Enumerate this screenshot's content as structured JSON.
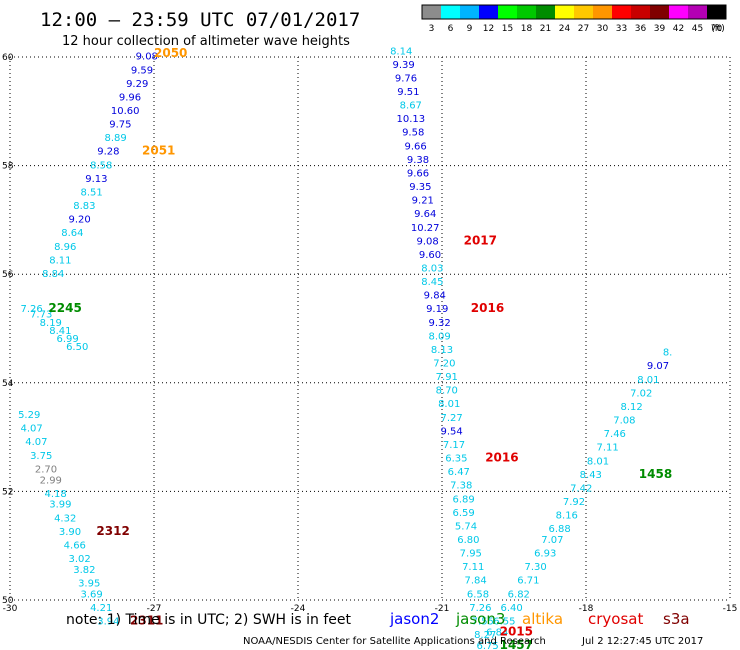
{
  "header": {
    "title": "12:00 – 23:59 UTC 07/01/2017",
    "subtitle": "12 hour collection of altimeter wave heights"
  },
  "legend": {
    "unit": "(ft)",
    "bins": [
      {
        "label": "3",
        "color": "#8c8c8c"
      },
      {
        "label": "6",
        "color": "#00ffff"
      },
      {
        "label": "9",
        "color": "#00b4ff"
      },
      {
        "label": "12",
        "color": "#0000ff"
      },
      {
        "label": "15",
        "color": "#00ff00"
      },
      {
        "label": "18",
        "color": "#00c800"
      },
      {
        "label": "21",
        "color": "#008c00"
      },
      {
        "label": "24",
        "color": "#ffff00"
      },
      {
        "label": "27",
        "color": "#ffc800"
      },
      {
        "label": "30",
        "color": "#ff9600"
      },
      {
        "label": "33",
        "color": "#ff0000"
      },
      {
        "label": "36",
        "color": "#c80000"
      },
      {
        "label": "39",
        "color": "#800000"
      },
      {
        "label": "42",
        "color": "#ff00ff"
      },
      {
        "label": "45",
        "color": "#b400b4"
      },
      {
        "label": "70",
        "color": "#000000"
      }
    ]
  },
  "chart_data": {
    "type": "scatter",
    "xlim": [
      -30,
      -15
    ],
    "ylim": [
      50,
      60
    ],
    "x_ticks": [
      {
        "value": -30,
        "label": "-30"
      },
      {
        "value": -27,
        "label": "-27"
      },
      {
        "value": -24,
        "label": "-24"
      },
      {
        "value": -21,
        "label": "-21"
      },
      {
        "value": -18,
        "label": "-18"
      },
      {
        "value": -15,
        "label": "-15"
      }
    ],
    "y_ticks": [
      {
        "value": 60,
        "label": "60"
      },
      {
        "value": 58,
        "label": "58"
      },
      {
        "value": 56,
        "label": "56"
      },
      {
        "value": 54,
        "label": "54"
      },
      {
        "value": 52,
        "label": "52"
      },
      {
        "value": 50,
        "label": "50"
      }
    ],
    "grid": true,
    "colors": {
      "c": "#00c8e8",
      "b": "#0000dc",
      "g": "#808080",
      "k": "#000000",
      "red": "#e00000",
      "green": "#008c00",
      "orange": "#ff9600",
      "maroon": "#800000"
    },
    "points": [
      {
        "x": -27.15,
        "y": 59.95,
        "label": "9.08",
        "c": "b"
      },
      {
        "x": -27.25,
        "y": 59.7,
        "label": "9.59",
        "c": "b"
      },
      {
        "x": -27.35,
        "y": 59.45,
        "label": "9.29",
        "c": "b"
      },
      {
        "x": -27.5,
        "y": 59.2,
        "label": "9.96",
        "c": "b"
      },
      {
        "x": -27.6,
        "y": 58.95,
        "label": "10.60",
        "c": "b"
      },
      {
        "x": -27.7,
        "y": 58.7,
        "label": "9.75",
        "c": "b"
      },
      {
        "x": -27.8,
        "y": 58.45,
        "label": "8.89",
        "c": "c"
      },
      {
        "x": -27.95,
        "y": 58.2,
        "label": "9.28",
        "c": "b"
      },
      {
        "x": -28.1,
        "y": 57.95,
        "label": "8.58",
        "c": "c"
      },
      {
        "x": -28.2,
        "y": 57.7,
        "label": "9.13",
        "c": "b"
      },
      {
        "x": -28.3,
        "y": 57.45,
        "label": "8.51",
        "c": "c"
      },
      {
        "x": -28.45,
        "y": 57.2,
        "label": "8.83",
        "c": "c"
      },
      {
        "x": -28.55,
        "y": 56.95,
        "label": "9.20",
        "c": "b"
      },
      {
        "x": -28.7,
        "y": 56.7,
        "label": "8.64",
        "c": "c"
      },
      {
        "x": -28.85,
        "y": 56.45,
        "label": "8.96",
        "c": "c"
      },
      {
        "x": -28.95,
        "y": 56.2,
        "label": "8.11",
        "c": "c"
      },
      {
        "x": -29.1,
        "y": 55.95,
        "label": "8.84",
        "c": "c"
      },
      {
        "x": -29.55,
        "y": 55.3,
        "label": "7.26",
        "c": "c"
      },
      {
        "x": -29.35,
        "y": 55.2,
        "label": "7.73",
        "c": "c"
      },
      {
        "x": -29.15,
        "y": 55.05,
        "label": "8.19",
        "c": "c"
      },
      {
        "x": -28.95,
        "y": 54.9,
        "label": "8.41",
        "c": "c"
      },
      {
        "x": -28.8,
        "y": 54.75,
        "label": "6.99",
        "c": "c"
      },
      {
        "x": -28.6,
        "y": 54.6,
        "label": "6.50",
        "c": "c"
      },
      {
        "x": -29.6,
        "y": 53.35,
        "label": "5.29",
        "c": "c"
      },
      {
        "x": -29.55,
        "y": 53.1,
        "label": "4.07",
        "c": "c"
      },
      {
        "x": -29.45,
        "y": 52.85,
        "label": "4.07",
        "c": "c"
      },
      {
        "x": -29.35,
        "y": 52.6,
        "label": "3.75",
        "c": "c"
      },
      {
        "x": -29.25,
        "y": 52.35,
        "label": "2.70",
        "c": "g"
      },
      {
        "x": -29.15,
        "y": 52.15,
        "label": "2.99",
        "c": "g"
      },
      {
        "x": -29.05,
        "y": 51.9,
        "label": "4.18",
        "c": "c"
      },
      {
        "x": -28.95,
        "y": 51.7,
        "label": "3.99",
        "c": "c"
      },
      {
        "x": -28.85,
        "y": 51.45,
        "label": "4.32",
        "c": "c"
      },
      {
        "x": -28.75,
        "y": 51.2,
        "label": "3.90",
        "c": "c"
      },
      {
        "x": -28.65,
        "y": 50.95,
        "label": "4.66",
        "c": "c"
      },
      {
        "x": -28.55,
        "y": 50.7,
        "label": "3.02",
        "c": "c"
      },
      {
        "x": -28.45,
        "y": 50.5,
        "label": "3.82",
        "c": "c"
      },
      {
        "x": -28.35,
        "y": 50.25,
        "label": "3.95",
        "c": "c"
      },
      {
        "x": -28.3,
        "y": 50.05,
        "label": "3.69",
        "c": "c"
      },
      {
        "x": -28.1,
        "y": 49.8,
        "label": "4.21",
        "c": "c"
      },
      {
        "x": -27.95,
        "y": 49.55,
        "label": "3.94",
        "c": "c"
      },
      {
        "x": -21.85,
        "y": 60.05,
        "label": "8.14",
        "c": "c"
      },
      {
        "x": -21.8,
        "y": 59.8,
        "label": "9.39",
        "c": "b"
      },
      {
        "x": -21.75,
        "y": 59.55,
        "label": "9.76",
        "c": "b"
      },
      {
        "x": -21.7,
        "y": 59.3,
        "label": "9.51",
        "c": "b"
      },
      {
        "x": -21.65,
        "y": 59.05,
        "label": "8.67",
        "c": "c"
      },
      {
        "x": -21.65,
        "y": 58.8,
        "label": "10.13",
        "c": "b"
      },
      {
        "x": -21.6,
        "y": 58.55,
        "label": "9.58",
        "c": "b"
      },
      {
        "x": -21.55,
        "y": 58.3,
        "label": "9.66",
        "c": "b"
      },
      {
        "x": -21.5,
        "y": 58.05,
        "label": "9.38",
        "c": "b"
      },
      {
        "x": -21.5,
        "y": 57.8,
        "label": "9.66",
        "c": "b"
      },
      {
        "x": -21.45,
        "y": 57.55,
        "label": "9.35",
        "c": "b"
      },
      {
        "x": -21.4,
        "y": 57.3,
        "label": "9.21",
        "c": "b"
      },
      {
        "x": -21.35,
        "y": 57.05,
        "label": "9.64",
        "c": "b"
      },
      {
        "x": -21.35,
        "y": 56.8,
        "label": "10.27",
        "c": "b"
      },
      {
        "x": -21.3,
        "y": 56.55,
        "label": "9.08",
        "c": "b"
      },
      {
        "x": -21.25,
        "y": 56.3,
        "label": "9.60",
        "c": "b"
      },
      {
        "x": -21.2,
        "y": 56.05,
        "label": "8.03",
        "c": "c"
      },
      {
        "x": -21.2,
        "y": 55.8,
        "label": "8.45",
        "c": "c"
      },
      {
        "x": -21.15,
        "y": 55.55,
        "label": "9.84",
        "c": "b"
      },
      {
        "x": -21.1,
        "y": 55.3,
        "label": "9.19",
        "c": "b"
      },
      {
        "x": -21.05,
        "y": 55.05,
        "label": "9.32",
        "c": "b"
      },
      {
        "x": -21.05,
        "y": 54.8,
        "label": "8.09",
        "c": "c"
      },
      {
        "x": -21.0,
        "y": 54.55,
        "label": "8.13",
        "c": "c"
      },
      {
        "x": -20.95,
        "y": 54.3,
        "label": "7.20",
        "c": "c"
      },
      {
        "x": -20.9,
        "y": 54.05,
        "label": "7.91",
        "c": "c"
      },
      {
        "x": -20.9,
        "y": 53.8,
        "label": "8.70",
        "c": "c"
      },
      {
        "x": -20.85,
        "y": 53.55,
        "label": "8.01",
        "c": "c"
      },
      {
        "x": -20.8,
        "y": 53.3,
        "label": "7.27",
        "c": "c"
      },
      {
        "x": -20.8,
        "y": 53.05,
        "label": "9.54",
        "c": "b"
      },
      {
        "x": -20.75,
        "y": 52.8,
        "label": "7.17",
        "c": "c"
      },
      {
        "x": -20.7,
        "y": 52.55,
        "label": "6.35",
        "c": "c"
      },
      {
        "x": -20.65,
        "y": 52.3,
        "label": "6.47",
        "c": "c"
      },
      {
        "x": -20.6,
        "y": 52.05,
        "label": "7.38",
        "c": "c"
      },
      {
        "x": -20.55,
        "y": 51.8,
        "label": "6.89",
        "c": "c"
      },
      {
        "x": -20.55,
        "y": 51.55,
        "label": "6.59",
        "c": "c"
      },
      {
        "x": -20.5,
        "y": 51.3,
        "label": "5.74",
        "c": "c"
      },
      {
        "x": -20.45,
        "y": 51.05,
        "label": "6.80",
        "c": "c"
      },
      {
        "x": -20.4,
        "y": 50.8,
        "label": "7.95",
        "c": "c"
      },
      {
        "x": -20.35,
        "y": 50.55,
        "label": "7.11",
        "c": "c"
      },
      {
        "x": -20.3,
        "y": 50.3,
        "label": "7.84",
        "c": "c"
      },
      {
        "x": -20.25,
        "y": 50.05,
        "label": "6.58",
        "c": "c"
      },
      {
        "x": -20.2,
        "y": 49.8,
        "label": "7.26",
        "c": "c"
      },
      {
        "x": -20.15,
        "y": 49.55,
        "label": "7.55",
        "c": "c"
      },
      {
        "x": -20.1,
        "y": 49.3,
        "label": "8.27",
        "c": "c"
      },
      {
        "x": -20.05,
        "y": 49.1,
        "label": "6.75",
        "c": "c"
      },
      {
        "x": -19.85,
        "y": 49.35,
        "label": "6.84",
        "c": "c"
      },
      {
        "x": -19.7,
        "y": 49.55,
        "label": "6.55",
        "c": "c"
      },
      {
        "x": -19.55,
        "y": 49.8,
        "label": "6.40",
        "c": "c"
      },
      {
        "x": -19.4,
        "y": 50.05,
        "label": "6.82",
        "c": "c"
      },
      {
        "x": -19.2,
        "y": 50.3,
        "label": "6.71",
        "c": "c"
      },
      {
        "x": -19.05,
        "y": 50.55,
        "label": "7.30",
        "c": "c"
      },
      {
        "x": -18.85,
        "y": 50.8,
        "label": "6.93",
        "c": "c"
      },
      {
        "x": -18.7,
        "y": 51.05,
        "label": "7.07",
        "c": "c"
      },
      {
        "x": -18.55,
        "y": 51.25,
        "label": "6.88",
        "c": "c"
      },
      {
        "x": -18.4,
        "y": 51.5,
        "label": "8.16",
        "c": "c"
      },
      {
        "x": -18.25,
        "y": 51.75,
        "label": "7.92",
        "c": "c"
      },
      {
        "x": -18.1,
        "y": 52.0,
        "label": "7.42",
        "c": "c"
      },
      {
        "x": -17.9,
        "y": 52.25,
        "label": "8.43",
        "c": "c"
      },
      {
        "x": -17.75,
        "y": 52.5,
        "label": "8.01",
        "c": "c"
      },
      {
        "x": -17.55,
        "y": 52.75,
        "label": "7.11",
        "c": "c"
      },
      {
        "x": -17.4,
        "y": 53.0,
        "label": "7.46",
        "c": "c"
      },
      {
        "x": -17.2,
        "y": 53.25,
        "label": "7.08",
        "c": "c"
      },
      {
        "x": -17.05,
        "y": 53.5,
        "label": "8.12",
        "c": "c"
      },
      {
        "x": -16.85,
        "y": 53.75,
        "label": "7.02",
        "c": "c"
      },
      {
        "x": -16.7,
        "y": 54.0,
        "label": "8.01",
        "c": "c"
      },
      {
        "x": -16.5,
        "y": 54.25,
        "label": "9.07",
        "c": "b"
      },
      {
        "x": -16.3,
        "y": 54.5,
        "label": "8.",
        "c": "c"
      }
    ],
    "track_labels": [
      {
        "x": -27.0,
        "y": 60.0,
        "label": "2050",
        "c": "orange"
      },
      {
        "x": -27.25,
        "y": 58.2,
        "label": "2051",
        "c": "orange"
      },
      {
        "x": -29.2,
        "y": 55.3,
        "label": "2245",
        "c": "green"
      },
      {
        "x": -28.2,
        "y": 51.2,
        "label": "2312",
        "c": "maroon"
      },
      {
        "x": -27.5,
        "y": 49.55,
        "label": "2311",
        "c": "maroon"
      },
      {
        "x": -20.55,
        "y": 56.55,
        "label": "2017",
        "c": "red"
      },
      {
        "x": -20.4,
        "y": 55.3,
        "label": "2016",
        "c": "red"
      },
      {
        "x": -20.1,
        "y": 52.55,
        "label": "2016",
        "c": "red"
      },
      {
        "x": -19.8,
        "y": 49.35,
        "label": "2015",
        "c": "red"
      },
      {
        "x": -19.8,
        "y": 49.1,
        "label": "1457",
        "c": "green"
      },
      {
        "x": -16.9,
        "y": 52.25,
        "label": "1458",
        "c": "green"
      }
    ]
  },
  "bottom": {
    "note": "note:  1) Time is in UTC;  2) SWH is in feet",
    "satellites": [
      {
        "name": "jason2",
        "color": "#0000ff"
      },
      {
        "name": "jason3",
        "color": "#008c00"
      },
      {
        "name": "altika",
        "color": "#ff9600"
      },
      {
        "name": "cryosat",
        "color": "#e00000"
      },
      {
        "name": "s3a",
        "color": "#800000"
      }
    ],
    "footer_left": "NOAA/NESDIS Center for Satellite Applications and Research",
    "footer_right": "Jul  2 12:27:45 UTC 2017"
  }
}
